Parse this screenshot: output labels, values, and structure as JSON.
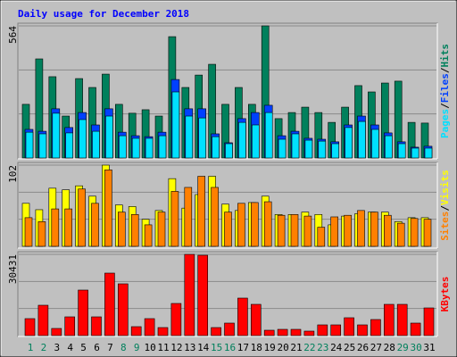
{
  "title": "Daily usage for December 2018",
  "categories": [
    "1",
    "2",
    "3",
    "4",
    "5",
    "6",
    "7",
    "8",
    "9",
    "10",
    "11",
    "12",
    "13",
    "14",
    "15",
    "16",
    "17",
    "18",
    "19",
    "20",
    "21",
    "22",
    "23",
    "24",
    "25",
    "26",
    "27",
    "28",
    "29",
    "30",
    "31"
  ],
  "category_colors": [
    "#00805c",
    "#00805c",
    "#000000",
    "#000000",
    "#000000",
    "#000000",
    "#000000",
    "#00805c",
    "#00805c",
    "#000000",
    "#000000",
    "#000000",
    "#000000",
    "#000000",
    "#00805c",
    "#00805c",
    "#000000",
    "#000000",
    "#000000",
    "#000000",
    "#000000",
    "#00805c",
    "#00805c",
    "#000000",
    "#000000",
    "#000000",
    "#000000",
    "#000000",
    "#00805c",
    "#00805c",
    "#000000"
  ],
  "legend_separator": "/",
  "chart_data": [
    {
      "type": "bar",
      "ylim": [
        0,
        564
      ],
      "yticks": [
        564
      ],
      "series": [
        {
          "name": "Hits",
          "color": "#00805c",
          "values": [
            229,
            423,
            347,
            179,
            339,
            301,
            358,
            229,
            191,
            206,
            179,
            518,
            301,
            354,
            400,
            229,
            301,
            229,
            564,
            168,
            194,
            217,
            194,
            152,
            217,
            309,
            282,
            320,
            328,
            152,
            149
          ]
        },
        {
          "name": "Files",
          "color": "#0040ff",
          "values": [
            122,
            114,
            210,
            130,
            194,
            141,
            210,
            110,
            95,
            91,
            110,
            335,
            210,
            210,
            103,
            65,
            168,
            194,
            225,
            95,
            114,
            84,
            80,
            69,
            141,
            179,
            141,
            107,
            69,
            46,
            50
          ]
        },
        {
          "name": "Pages",
          "color": "#00e0ff",
          "values": [
            110,
            103,
            191,
            107,
            164,
            114,
            179,
            95,
            84,
            84,
            95,
            282,
            179,
            171,
            91,
            61,
            152,
            141,
            194,
            80,
            103,
            76,
            72,
            61,
            130,
            156,
            122,
            95,
            61,
            42,
            42
          ]
        }
      ]
    },
    {
      "type": "bar",
      "ylim": [
        0,
        102
      ],
      "yticks": [
        102
      ],
      "series": [
        {
          "name": "Visits",
          "color": "#ffff00",
          "values": [
            54,
            46,
            73,
            71,
            76,
            63,
            102,
            52,
            50,
            34,
            45,
            85,
            48,
            65,
            88,
            53,
            45,
            55,
            63,
            40,
            40,
            43,
            40,
            27,
            38,
            41,
            43,
            43,
            31,
            36,
            36
          ]
        },
        {
          "name": "Sites",
          "color": "#ff8000",
          "values": [
            36,
            31,
            47,
            47,
            72,
            54,
            96,
            43,
            40,
            27,
            43,
            69,
            74,
            88,
            74,
            43,
            54,
            55,
            56,
            39,
            40,
            38,
            24,
            37,
            39,
            45,
            43,
            39,
            29,
            35,
            34
          ]
        }
      ]
    },
    {
      "type": "bar",
      "ylim": [
        0,
        30431
      ],
      "yticks": [
        30431
      ],
      "series": [
        {
          "name": "KBytes",
          "color": "#ff0000",
          "values": [
            6353,
            11370,
            2675,
            7022,
            17055,
            7022,
            23408,
            19396,
            3344,
            6353,
            3010,
            12039,
            30431,
            30097,
            3010,
            4682,
            14045,
            11705,
            2006,
            2341,
            2341,
            1672,
            4013,
            4013,
            6688,
            4013,
            6019,
            11705,
            11705,
            4682,
            10367
          ]
        }
      ]
    }
  ]
}
